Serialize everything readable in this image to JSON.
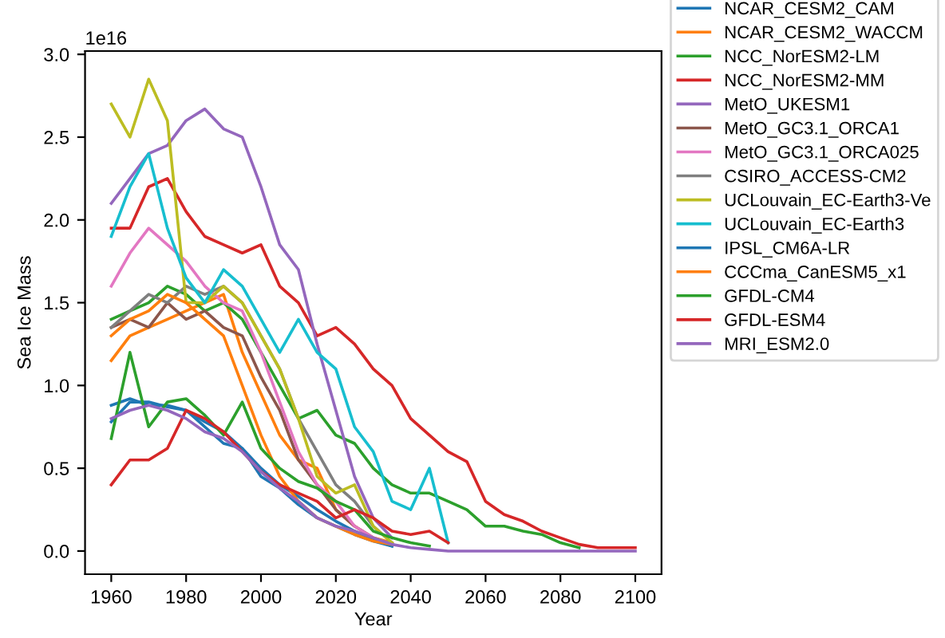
{
  "chart_data": {
    "type": "line",
    "xlabel": "Year",
    "ylabel": "Sea Ice Mass",
    "annotations": [
      "1e16"
    ],
    "x": [
      1960,
      1965,
      1970,
      1975,
      1980,
      1985,
      1990,
      1995,
      2000,
      2005,
      2010,
      2015,
      2020,
      2025,
      2030,
      2035,
      2040,
      2045,
      2050,
      2055,
      2060,
      2065,
      2070,
      2075,
      2080,
      2085,
      2090,
      2095,
      2100
    ],
    "xlim": [
      1953,
      2107
    ],
    "xticks": [
      1960,
      1980,
      2000,
      2020,
      2040,
      2060,
      2080,
      2100
    ],
    "ylim": [
      -0.14,
      3.02
    ],
    "yticks": [
      {
        "value": 0,
        "label": "0.0"
      },
      {
        "value": 0.5,
        "label": "0.5"
      },
      {
        "value": 1,
        "label": "1.0"
      },
      {
        "value": 1.5,
        "label": "1.5"
      },
      {
        "value": 2,
        "label": "2.0"
      },
      {
        "value": 2.5,
        "label": "2.5"
      },
      {
        "value": 3,
        "label": "3.0"
      }
    ],
    "grid": false,
    "legend": "right",
    "marker": "none",
    "line_style": "solid",
    "series": [
      {
        "name": "NCAR_CESM2_CAM",
        "color": "#1f77b4",
        "values": [
          0.88,
          0.92,
          0.88,
          0.88,
          0.85,
          0.78,
          0.72,
          0.62,
          0.45,
          0.38,
          0.28,
          0.2,
          0.15,
          0.1,
          0.06,
          0.03,
          null,
          null,
          null,
          null,
          null,
          null,
          null,
          null,
          null,
          null,
          null,
          null,
          null
        ]
      },
      {
        "name": "NCAR_CESM2_WACCM",
        "color": "#ff7f0e",
        "values": [
          1.15,
          1.3,
          1.35,
          1.4,
          1.45,
          1.5,
          1.55,
          1.2,
          0.95,
          0.7,
          0.55,
          0.5,
          0.25,
          0.15,
          0.08,
          0.05,
          null,
          null,
          null,
          null,
          null,
          null,
          null,
          null,
          null,
          null,
          null,
          null,
          null
        ]
      },
      {
        "name": "NCC_NorESM2-LM",
        "color": "#2ca02c",
        "values": [
          1.4,
          1.45,
          1.5,
          1.6,
          1.55,
          1.45,
          1.5,
          1.4,
          1.2,
          1.0,
          0.8,
          0.85,
          0.7,
          0.65,
          0.5,
          0.4,
          0.35,
          0.35,
          0.3,
          0.25,
          0.15,
          0.15,
          0.12,
          0.1,
          0.05,
          0.02,
          null,
          null,
          null
        ]
      },
      {
        "name": "NCC_NorESM2-MM",
        "color": "#d62728",
        "values": [
          1.95,
          1.95,
          2.2,
          2.25,
          2.05,
          1.9,
          1.85,
          1.8,
          1.85,
          1.6,
          1.5,
          1.3,
          1.35,
          1.25,
          1.1,
          1.0,
          0.8,
          0.7,
          0.6,
          0.54,
          0.3,
          0.22,
          0.18,
          0.12,
          0.08,
          0.04,
          0.02,
          0.02,
          0.02
        ]
      },
      {
        "name": "MetO_UKESM1",
        "color": "#9467bd",
        "values": [
          2.1,
          2.25,
          2.4,
          2.45,
          2.6,
          2.67,
          2.55,
          2.5,
          2.2,
          1.85,
          1.7,
          1.25,
          0.85,
          0.45,
          0.2,
          0.08,
          null,
          null,
          null,
          null,
          null,
          null,
          null,
          null,
          null,
          null,
          null,
          null,
          null
        ]
      },
      {
        "name": "MetO_GC3.1_ORCA1",
        "color": "#8c564b",
        "values": [
          1.35,
          1.4,
          1.35,
          1.5,
          1.4,
          1.45,
          1.35,
          1.3,
          1.05,
          0.85,
          0.55,
          0.4,
          0.25,
          0.15,
          0.08,
          0.04,
          null,
          null,
          null,
          null,
          null,
          null,
          null,
          null,
          null,
          null,
          null,
          null,
          null
        ]
      },
      {
        "name": "MetO_GC3.1_ORCA025",
        "color": "#e377c2",
        "values": [
          1.6,
          1.8,
          1.95,
          1.85,
          1.75,
          1.6,
          1.5,
          1.45,
          1.2,
          0.9,
          0.6,
          0.4,
          0.3,
          0.15,
          0.08,
          0.04,
          null,
          null,
          null,
          null,
          null,
          null,
          null,
          null,
          null,
          null,
          null,
          null,
          null
        ]
      },
      {
        "name": "CSIRO_ACCESS-CM2",
        "color": "#7f7f7f",
        "values": [
          1.35,
          1.45,
          1.55,
          1.5,
          1.6,
          1.55,
          1.6,
          1.5,
          1.3,
          1.1,
          0.8,
          0.6,
          0.4,
          0.3,
          0.15,
          0.05,
          null,
          null,
          null,
          null,
          null,
          null,
          null,
          null,
          null,
          null,
          null,
          null,
          null
        ]
      },
      {
        "name": "UCLouvain_EC-Earth3-Ve",
        "color": "#bcbd22",
        "values": [
          2.7,
          2.5,
          2.85,
          2.6,
          1.5,
          1.5,
          1.6,
          1.5,
          1.3,
          1.1,
          0.8,
          0.45,
          0.35,
          0.4,
          0.15,
          0.05,
          null,
          null,
          null,
          null,
          null,
          null,
          null,
          null,
          null,
          null,
          null,
          null,
          null
        ]
      },
      {
        "name": "UCLouvain_EC-Earth3",
        "color": "#17becf",
        "values": [
          1.9,
          2.2,
          2.4,
          1.95,
          1.65,
          1.5,
          1.7,
          1.6,
          1.4,
          1.2,
          1.4,
          1.2,
          1.1,
          0.75,
          0.6,
          0.3,
          0.25,
          0.5,
          0.05,
          null,
          null,
          null,
          null,
          null,
          null,
          null,
          null,
          null,
          null
        ]
      },
      {
        "name": "IPSL_CM6A-LR",
        "color": "#1f77b4",
        "values": [
          0.78,
          0.9,
          0.9,
          0.87,
          0.85,
          0.75,
          0.65,
          0.62,
          0.5,
          0.4,
          0.33,
          0.25,
          0.18,
          0.12,
          0.07,
          0.03,
          null,
          null,
          null,
          null,
          null,
          null,
          null,
          null,
          null,
          null,
          null,
          null,
          null
        ]
      },
      {
        "name": "CCCma_CanESM5_x1",
        "color": "#ff7f0e",
        "values": [
          1.3,
          1.4,
          1.45,
          1.55,
          1.5,
          1.4,
          1.3,
          1.0,
          0.7,
          0.45,
          0.3,
          0.2,
          0.15,
          0.1,
          0.06,
          0.04,
          null,
          null,
          null,
          null,
          null,
          null,
          null,
          null,
          null,
          null,
          null,
          null,
          null
        ]
      },
      {
        "name": "GFDL-CM4",
        "color": "#2ca02c",
        "values": [
          0.68,
          1.2,
          0.75,
          0.9,
          0.92,
          0.82,
          0.7,
          0.9,
          0.62,
          0.5,
          0.42,
          0.38,
          0.3,
          0.25,
          0.12,
          0.08,
          0.05,
          0.03,
          null,
          null,
          null,
          null,
          null,
          null,
          null,
          null,
          null,
          null,
          null
        ]
      },
      {
        "name": "GFDL-ESM4",
        "color": "#d62728",
        "values": [
          0.4,
          0.55,
          0.55,
          0.62,
          0.85,
          0.8,
          0.72,
          0.6,
          0.48,
          0.4,
          0.35,
          0.3,
          0.2,
          0.25,
          0.2,
          0.12,
          0.1,
          0.12,
          0.05,
          null,
          null,
          null,
          null,
          null,
          null,
          null,
          null,
          null,
          null
        ]
      },
      {
        "name": "MRI_ESM2.0",
        "color": "#9467bd",
        "values": [
          0.8,
          0.85,
          0.88,
          0.85,
          0.8,
          0.72,
          0.68,
          0.6,
          0.48,
          0.38,
          0.3,
          0.2,
          0.15,
          0.12,
          0.08,
          0.04,
          0.02,
          0.01,
          0,
          0,
          0,
          0,
          0,
          0,
          0,
          0,
          0,
          0,
          0
        ]
      }
    ]
  }
}
